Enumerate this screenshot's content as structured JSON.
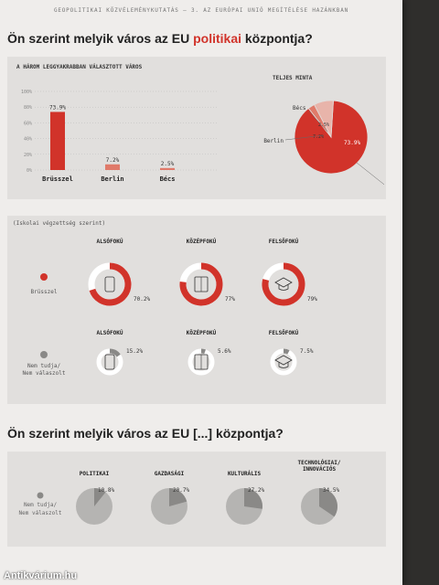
{
  "header": "GEOPOLITIKAI KÖZVÉLEMÉNYKUTATÁS – 3. AZ EURÓPAI UNIÓ MEGÍTÉLÉSE HAZÁNKBAN",
  "q1": {
    "pre": "Ön szerint melyik város az EU ",
    "hl": "politikai",
    "post": " központja?"
  },
  "q2": "Ön szerint melyik város az EU [...] központja?",
  "watermark": "Antikvárium.hu",
  "colors": {
    "red": "#d1332a",
    "redLight": "#e07a6a",
    "gray": "#8a8987",
    "grayLight": "#b5b4b2",
    "panel": "#e1dfdd"
  },
  "chart_data": [
    {
      "type": "bar",
      "title": "A HÁROM LEGGYAKRABBAN VÁLASZTOTT VÁROS",
      "categories": [
        "Brüsszel",
        "Berlin",
        "Bécs"
      ],
      "values": [
        73.9,
        7.2,
        2.5
      ],
      "value_labels": [
        "73.9%",
        "7.2%",
        "2.5%"
      ],
      "ylim": [
        0,
        100
      ],
      "yticks": [
        "100%",
        "80%",
        "60%",
        "40%",
        "20%",
        "0%"
      ]
    },
    {
      "type": "pie",
      "title": "TELJES MINTA",
      "labels": [
        "Brüsszel",
        "Bécs",
        "Berlin"
      ],
      "values": [
        73.9,
        2.5,
        7.2
      ],
      "value_labels": [
        "73.9%",
        "2.5%",
        "7.2%"
      ]
    },
    {
      "type": "donut",
      "title": "(Iskolai végzettség szerint)",
      "groups": [
        "ALSÓFOKÚ",
        "KÖZÉPFOKÚ",
        "FELSŐFOKÚ"
      ],
      "series": [
        {
          "name": "Brüsszel",
          "values": [
            70.2,
            77,
            79
          ],
          "value_labels": [
            "70.2%",
            "77%",
            "79%"
          ]
        },
        {
          "name": "Nem tudja/ Nem válaszolt",
          "values": [
            15.2,
            5.6,
            7.5
          ],
          "value_labels": [
            "15.2%",
            "5.6%",
            "7.5%"
          ]
        }
      ]
    },
    {
      "type": "pie",
      "title": "Nem tudja/ Nem válaszolt",
      "categories": [
        "POLITIKAI",
        "GAZDASÁGI",
        "KULTURÁLIS",
        "TECHNOLÓGIAI/ INNOVÁCIÓS"
      ],
      "values": [
        10.8,
        20.7,
        27.2,
        34.5
      ],
      "value_labels": [
        "10.8%",
        "20.7%",
        "27.2%",
        "34.5%"
      ]
    }
  ]
}
